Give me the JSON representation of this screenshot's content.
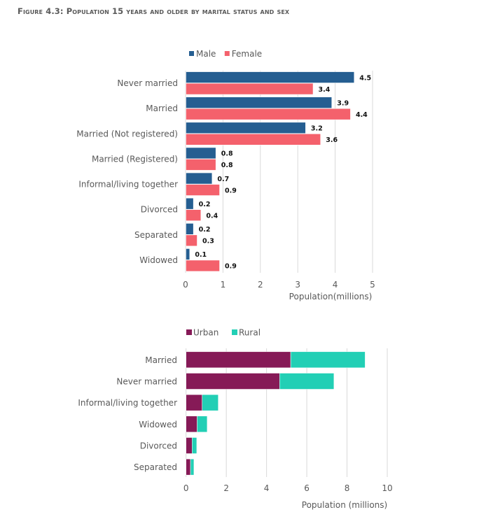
{
  "figure_title": "Figure 4.3: Population 15 years and older by marital status and sex",
  "chart_data": [
    {
      "type": "bar",
      "orientation": "horizontal",
      "grouped": true,
      "title": "",
      "categories": [
        "Never married",
        "Married",
        "Married (Not registered)",
        "Married (Registered)",
        "Informal/living together",
        "Divorced",
        "Separated",
        "Widowed"
      ],
      "series": [
        {
          "name": "Male",
          "color": "#255e91",
          "values": [
            4.5,
            3.9,
            3.2,
            0.8,
            0.7,
            0.2,
            0.2,
            0.1
          ]
        },
        {
          "name": "Female",
          "color": "#f4616c",
          "values": [
            3.4,
            4.4,
            3.6,
            0.8,
            0.9,
            0.4,
            0.3,
            0.9
          ]
        }
      ],
      "data_labels": {
        "Male": [
          "4.5",
          "3.9",
          "3.2",
          "0.8",
          "0.7",
          "0.2",
          "0.2",
          "0.1"
        ],
        "Female": [
          "3.4",
          "4.4",
          "3.6",
          "0.8",
          "0.9",
          "0.4",
          "0.3",
          "0.9"
        ]
      },
      "xlabel": "Population(millions)",
      "ylabel": "",
      "xlim": [
        0,
        5
      ],
      "xticks": [
        "0",
        "1",
        "2",
        "3",
        "4",
        "5"
      ],
      "grid": true,
      "legend": "top"
    },
    {
      "type": "bar",
      "orientation": "horizontal",
      "stacked": true,
      "title": "",
      "categories": [
        "Married",
        "Never married",
        "Informal/living together",
        "Widowed",
        "Divorced",
        "Separated"
      ],
      "series": [
        {
          "name": "Urban",
          "color": "#861a57",
          "values": [
            5.2,
            4.65,
            0.8,
            0.55,
            0.3,
            0.22
          ]
        },
        {
          "name": "Rural",
          "color": "#22cfb5",
          "values": [
            3.7,
            2.7,
            0.8,
            0.5,
            0.23,
            0.17
          ]
        }
      ],
      "xlabel": "Population (millions)",
      "ylabel": "",
      "xlim": [
        0,
        10
      ],
      "xticks": [
        "0",
        "2",
        "4",
        "6",
        "8",
        "10"
      ],
      "grid": true,
      "legend": "top"
    }
  ]
}
